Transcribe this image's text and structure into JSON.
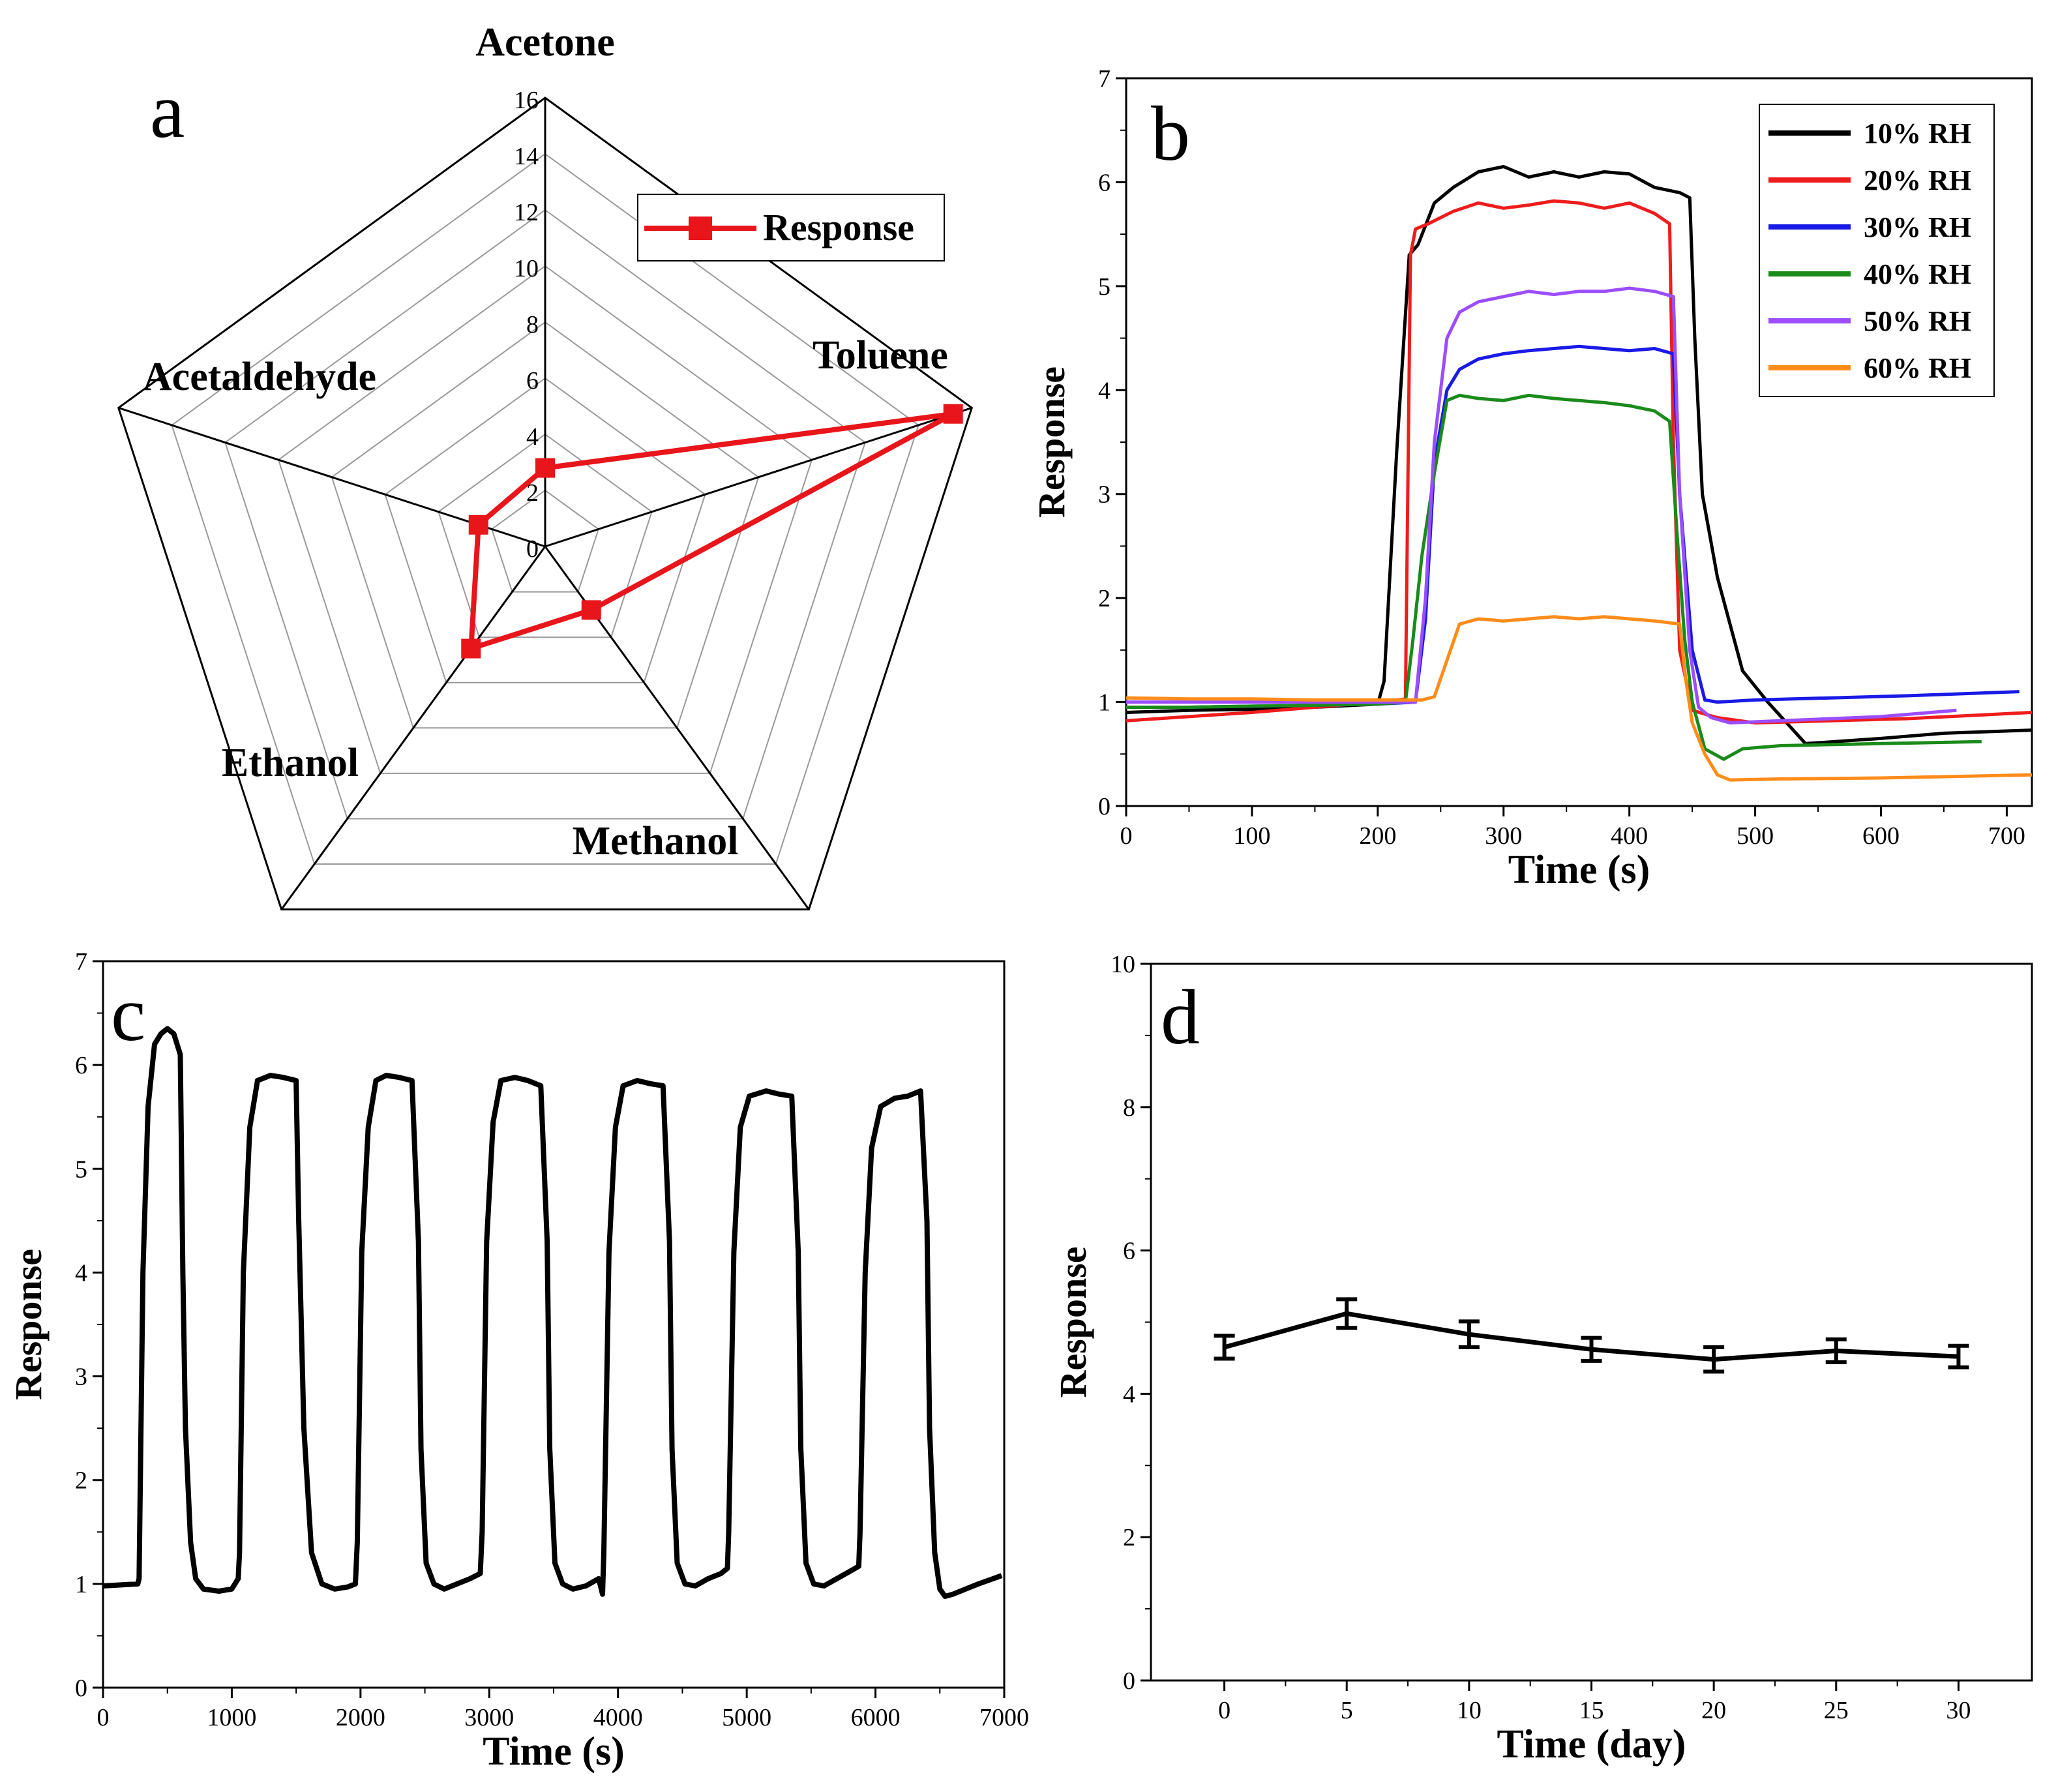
{
  "figure": {
    "panel_labels": [
      "a",
      "b",
      "c",
      "d"
    ]
  },
  "chart_data": [
    {
      "panel": "a",
      "type": "radar",
      "axes": [
        "Acetone",
        "Toluene",
        "Methanol",
        "Ethanol",
        "Acetaldehyde"
      ],
      "rlim": [
        0,
        16
      ],
      "ticks": [
        0,
        2,
        4,
        6,
        8,
        10,
        12,
        14,
        16
      ],
      "tick_labels": [
        "0",
        "2",
        "4",
        "6",
        "8",
        "10",
        "12",
        "14",
        "16"
      ],
      "series": [
        {
          "name": "Response",
          "color": "#e8151b",
          "values": [
            2.8,
            15.3,
            2.8,
            4.5,
            2.5
          ]
        }
      ],
      "legend": "Response"
    },
    {
      "panel": "b",
      "type": "line",
      "xlabel": "Time (s)",
      "ylabel": "Response",
      "xlim": [
        0,
        720
      ],
      "ylim": [
        0,
        7
      ],
      "xticks": [
        0,
        100,
        200,
        300,
        400,
        500,
        600,
        700
      ],
      "xtick_labels": [
        "0",
        "100",
        "200",
        "300",
        "400",
        "500",
        "600",
        "700"
      ],
      "yticks": [
        0,
        1,
        2,
        3,
        4,
        5,
        6,
        7
      ],
      "ytick_labels": [
        "0",
        "1",
        "2",
        "3",
        "4",
        "5",
        "6",
        "7"
      ],
      "legend_position": "top-right",
      "series": [
        {
          "name": "10% RH",
          "color": "#000000",
          "x": [
            0,
            50,
            100,
            150,
            200,
            205,
            215,
            225,
            232,
            245,
            260,
            280,
            300,
            320,
            340,
            360,
            380,
            400,
            420,
            440,
            448,
            452,
            458,
            470,
            490,
            510,
            540,
            600,
            650,
            720
          ],
          "y": [
            0.9,
            0.92,
            0.93,
            0.95,
            0.98,
            1.2,
            3.4,
            5.3,
            5.4,
            5.8,
            5.95,
            6.1,
            6.15,
            6.05,
            6.1,
            6.05,
            6.1,
            6.08,
            5.95,
            5.9,
            5.85,
            4.5,
            3.0,
            2.2,
            1.3,
            1.0,
            0.6,
            0.65,
            0.7,
            0.73
          ]
        },
        {
          "name": "20% RH",
          "color": "#ef1c1c",
          "x": [
            0,
            50,
            100,
            150,
            200,
            222,
            226,
            230,
            240,
            260,
            280,
            300,
            320,
            340,
            360,
            380,
            400,
            420,
            432,
            435,
            440,
            450,
            470,
            500,
            560,
            620,
            720
          ],
          "y": [
            0.82,
            0.86,
            0.9,
            0.95,
            1.0,
            1.03,
            5.3,
            5.55,
            5.6,
            5.72,
            5.8,
            5.75,
            5.78,
            5.82,
            5.8,
            5.75,
            5.8,
            5.7,
            5.6,
            3.5,
            1.5,
            0.92,
            0.85,
            0.8,
            0.82,
            0.84,
            0.9
          ]
        },
        {
          "name": "30% RH",
          "color": "#1a1ae6",
          "x": [
            0,
            50,
            100,
            150,
            200,
            230,
            238,
            245,
            255,
            265,
            280,
            300,
            320,
            340,
            360,
            380,
            400,
            420,
            435,
            440,
            450,
            460,
            470,
            500,
            560,
            620,
            710
          ],
          "y": [
            0.95,
            0.95,
            0.96,
            0.97,
            0.98,
            1.0,
            1.8,
            3.3,
            4.0,
            4.2,
            4.3,
            4.35,
            4.38,
            4.4,
            4.42,
            4.4,
            4.38,
            4.4,
            4.35,
            3.0,
            1.5,
            1.02,
            1.0,
            1.02,
            1.04,
            1.06,
            1.1
          ]
        },
        {
          "name": "40% RH",
          "color": "#1a8a1a",
          "x": [
            0,
            50,
            100,
            150,
            200,
            222,
            228,
            235,
            245,
            255,
            265,
            280,
            300,
            320,
            340,
            360,
            380,
            400,
            420,
            432,
            438,
            444,
            450,
            460,
            475,
            490,
            520,
            600,
            680
          ],
          "y": [
            0.95,
            0.95,
            0.96,
            0.97,
            0.98,
            1.0,
            1.6,
            2.4,
            3.2,
            3.9,
            3.95,
            3.92,
            3.9,
            3.95,
            3.92,
            3.9,
            3.88,
            3.85,
            3.8,
            3.7,
            2.6,
            1.6,
            1.0,
            0.55,
            0.45,
            0.55,
            0.58,
            0.6,
            0.62
          ]
        },
        {
          "name": "50% RH",
          "color": "#9b4dff",
          "x": [
            0,
            50,
            100,
            150,
            200,
            230,
            238,
            245,
            255,
            265,
            280,
            300,
            320,
            340,
            360,
            380,
            400,
            420,
            435,
            440,
            448,
            455,
            465,
            480,
            520,
            600,
            660
          ],
          "y": [
            1.0,
            1.0,
            1.0,
            1.0,
            1.0,
            1.0,
            2.0,
            3.5,
            4.5,
            4.75,
            4.85,
            4.9,
            4.95,
            4.92,
            4.95,
            4.95,
            4.98,
            4.95,
            4.9,
            3.0,
            1.5,
            0.95,
            0.85,
            0.8,
            0.82,
            0.86,
            0.92
          ]
        },
        {
          "name": "60% RH",
          "color": "#ff8c1a",
          "x": [
            0,
            50,
            100,
            150,
            200,
            235,
            245,
            255,
            265,
            280,
            300,
            320,
            340,
            360,
            380,
            400,
            420,
            440,
            445,
            450,
            460,
            470,
            480,
            520,
            600,
            720
          ],
          "y": [
            1.04,
            1.03,
            1.03,
            1.02,
            1.02,
            1.02,
            1.05,
            1.4,
            1.75,
            1.8,
            1.78,
            1.8,
            1.82,
            1.8,
            1.82,
            1.8,
            1.78,
            1.75,
            1.2,
            0.8,
            0.5,
            0.3,
            0.25,
            0.26,
            0.27,
            0.3
          ]
        }
      ]
    },
    {
      "panel": "c",
      "type": "line",
      "xlabel": "Time (s)",
      "ylabel": "Response",
      "xlim": [
        0,
        7000
      ],
      "ylim": [
        0,
        7
      ],
      "xticks": [
        0,
        1000,
        2000,
        3000,
        4000,
        5000,
        6000,
        7000
      ],
      "xtick_labels": [
        "0",
        "1000",
        "2000",
        "3000",
        "4000",
        "5000",
        "6000",
        "7000"
      ],
      "yticks": [
        0,
        1,
        2,
        3,
        4,
        5,
        6,
        7
      ],
      "ytick_labels": [
        "0",
        "1",
        "2",
        "3",
        "4",
        "5",
        "6",
        "7"
      ],
      "series": [
        {
          "name": "Response",
          "color": "#000000",
          "x": [
            0,
            270,
            280,
            310,
            350,
            400,
            450,
            500,
            550,
            600,
            620,
            640,
            680,
            720,
            780,
            900,
            1000,
            1050,
            1060,
            1090,
            1140,
            1200,
            1300,
            1400,
            1500,
            1520,
            1560,
            1620,
            1700,
            1800,
            1900,
            1960,
            1975,
            2010,
            2060,
            2120,
            2200,
            2300,
            2400,
            2450,
            2470,
            2510,
            2570,
            2650,
            2750,
            2850,
            2930,
            2945,
            2980,
            3030,
            3090,
            3200,
            3300,
            3400,
            3450,
            3470,
            3510,
            3570,
            3650,
            3750,
            3850,
            3880,
            3890,
            3930,
            3980,
            4040,
            4150,
            4250,
            4350,
            4400,
            4420,
            4460,
            4520,
            4600,
            4700,
            4800,
            4850,
            4860,
            4900,
            4950,
            5020,
            5150,
            5250,
            5350,
            5400,
            5420,
            5460,
            5520,
            5600,
            5700,
            5800,
            5870,
            5880,
            5920,
            5970,
            6040,
            6150,
            6250,
            6350,
            6400,
            6420,
            6460,
            6500,
            6540,
            6600,
            6700,
            6800,
            6980
          ],
          "y": [
            0.98,
            1.0,
            1.05,
            4.0,
            5.6,
            6.2,
            6.3,
            6.35,
            6.3,
            6.1,
            4.0,
            2.5,
            1.4,
            1.05,
            0.95,
            0.93,
            0.95,
            1.05,
            1.3,
            4.0,
            5.4,
            5.85,
            5.9,
            5.88,
            5.85,
            4.5,
            2.5,
            1.3,
            1.0,
            0.95,
            0.97,
            1.0,
            1.4,
            4.2,
            5.4,
            5.85,
            5.9,
            5.88,
            5.85,
            4.3,
            2.3,
            1.2,
            1.0,
            0.95,
            1.0,
            1.05,
            1.1,
            1.5,
            4.3,
            5.45,
            5.85,
            5.88,
            5.85,
            5.8,
            4.3,
            2.3,
            1.2,
            1.0,
            0.95,
            0.98,
            1.05,
            0.9,
            1.3,
            4.2,
            5.4,
            5.8,
            5.85,
            5.82,
            5.8,
            4.3,
            2.3,
            1.2,
            1.0,
            0.98,
            1.05,
            1.1,
            1.15,
            1.5,
            4.2,
            5.4,
            5.7,
            5.75,
            5.72,
            5.7,
            4.2,
            2.3,
            1.2,
            1.0,
            0.98,
            1.05,
            1.12,
            1.17,
            1.5,
            4.0,
            5.2,
            5.6,
            5.68,
            5.7,
            5.75,
            4.5,
            2.5,
            1.3,
            0.95,
            0.88,
            0.9,
            0.95,
            1.0,
            1.08
          ]
        }
      ]
    },
    {
      "panel": "d",
      "type": "line",
      "xlabel": "Time (day)",
      "ylabel": "Response",
      "xlim": [
        -3,
        33
      ],
      "ylim": [
        0,
        10
      ],
      "xticks": [
        0,
        5,
        10,
        15,
        20,
        25,
        30
      ],
      "xtick_labels": [
        "0",
        "5",
        "10",
        "15",
        "20",
        "25",
        "30"
      ],
      "yticks": [
        0,
        2,
        4,
        6,
        8,
        10
      ],
      "ytick_labels": [
        "0",
        "2",
        "4",
        "6",
        "8",
        "10"
      ],
      "series": [
        {
          "name": "Response",
          "color": "#000000",
          "x": [
            0,
            5,
            10,
            15,
            20,
            25,
            30
          ],
          "y": [
            4.65,
            5.12,
            4.83,
            4.62,
            4.48,
            4.6,
            4.52
          ],
          "error": [
            0.16,
            0.2,
            0.18,
            0.16,
            0.17,
            0.16,
            0.15
          ]
        }
      ]
    }
  ]
}
